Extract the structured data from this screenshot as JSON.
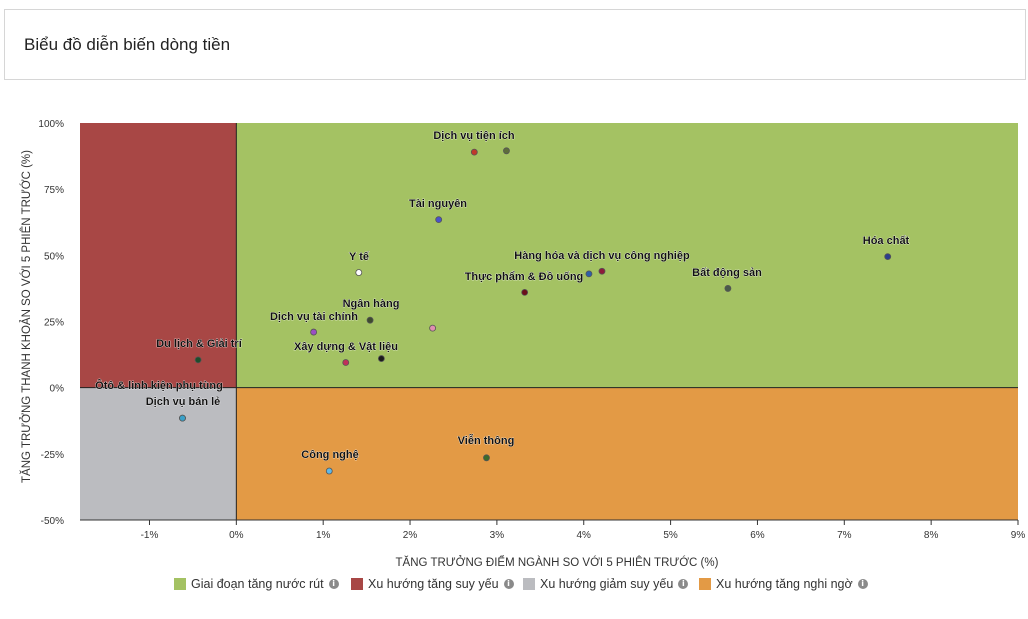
{
  "header": {
    "title": "Biểu đồ diễn biến dòng tiền"
  },
  "colors": {
    "green": "#a4c263",
    "red": "#a84745",
    "gray": "#bbbcc0",
    "orange": "#e39a45"
  },
  "chart_data": {
    "type": "scatter",
    "xlabel": "TĂNG TRƯỞNG ĐIỂM NGÀNH SO VỚI 5 PHIÊN TRƯỚC (%)",
    "ylabel": "TĂNG TRƯỞNG THANH KHOẢN SO VỚI 5 PHIÊN TRƯỚC (%)",
    "xlim": [
      -1.8,
      9
    ],
    "ylim": [
      -50,
      100
    ],
    "x_ticks": [
      -1,
      0,
      1,
      2,
      3,
      4,
      5,
      6,
      7,
      8,
      9
    ],
    "x_tick_labels": [
      "-1%",
      "0%",
      "1%",
      "2%",
      "3%",
      "4%",
      "5%",
      "6%",
      "7%",
      "8%",
      "9%"
    ],
    "y_ticks": [
      -50,
      -25,
      0,
      25,
      50,
      75,
      100
    ],
    "y_tick_labels": [
      "-50%",
      "-25%",
      "0%",
      "25%",
      "50%",
      "75%",
      "100%"
    ],
    "quadrants": [
      {
        "name": "Giai đoạn tăng nước rút",
        "region": "top-right",
        "color": "#a4c263"
      },
      {
        "name": "Xu hướng tăng suy yếu",
        "region": "top-left",
        "color": "#a84745"
      },
      {
        "name": "Xu hướng giảm suy yếu",
        "region": "bottom-left",
        "color": "#bbbcc0"
      },
      {
        "name": "Xu hướng tăng nghi ngờ",
        "region": "bottom-right",
        "color": "#e39a45"
      }
    ],
    "points": [
      {
        "label": "Dịch vụ tiện ích",
        "x": 2.74,
        "y": 89,
        "color": "#c0392b"
      },
      {
        "label": "",
        "x": 3.11,
        "y": 89.5,
        "color": "#5d6d3a"
      },
      {
        "label": "Tài nguyên",
        "x": 2.33,
        "y": 63.5,
        "color": "#4a52c9"
      },
      {
        "label": "Hóa chất",
        "x": 7.5,
        "y": 49.5,
        "color": "#2c3e8c"
      },
      {
        "label": "Y tế",
        "x": 1.41,
        "y": 43.5,
        "color": "#ffffff"
      },
      {
        "label": "Hàng hóa và dịch vụ công nghiệp",
        "x": 4.21,
        "y": 44,
        "color": "#8e1b3a"
      },
      {
        "label": "",
        "x": 4.06,
        "y": 43,
        "color": "#2e5fa8"
      },
      {
        "label": "Thực phẩm & Đồ uống",
        "x": 3.32,
        "y": 36,
        "color": "#6b0f1a"
      },
      {
        "label": "Bất động sản",
        "x": 5.66,
        "y": 37.5,
        "color": "#4a5a4a"
      },
      {
        "label": "Ngân hàng",
        "x": 1.54,
        "y": 25.5,
        "color": "#3d4a2e"
      },
      {
        "label": "Dịch vụ tài chính",
        "x": 0.89,
        "y": 21,
        "color": "#9b4fc4"
      },
      {
        "label": "",
        "x": 2.26,
        "y": 22.5,
        "color": "#e08fb0"
      },
      {
        "label": "Xây dựng & Vật liệu",
        "x": 1.67,
        "y": 11,
        "color": "#1a1a1a"
      },
      {
        "label": "",
        "x": 1.26,
        "y": 9.5,
        "color": "#c0305a"
      },
      {
        "label": "Du lịch & Giải trí",
        "x": -0.44,
        "y": 10.5,
        "color": "#1e4d2b"
      },
      {
        "label": "Ôtô & linh kiện phụ tùng",
        "x": -0.62,
        "y": -11.5,
        "color": "#3aa0c8"
      },
      {
        "label": "Dịch vụ bán lẻ",
        "x": -0.62,
        "y": -11.5,
        "color": "#3aa0c8"
      },
      {
        "label": "Viễn thông",
        "x": 2.88,
        "y": -26.5,
        "color": "#3c6b2a"
      },
      {
        "label": "Công nghệ",
        "x": 1.07,
        "y": -31.5,
        "color": "#5fb8e8"
      }
    ]
  },
  "legend": [
    {
      "label": "Giai đoạn tăng nước rút",
      "color": "#a4c263"
    },
    {
      "label": "Xu hướng tăng suy yếu",
      "color": "#a84745"
    },
    {
      "label": "Xu hướng giảm suy yếu",
      "color": "#bbbcc0"
    },
    {
      "label": "Xu hướng tăng nghi ngờ",
      "color": "#e39a45"
    }
  ],
  "info_glyph": "i"
}
